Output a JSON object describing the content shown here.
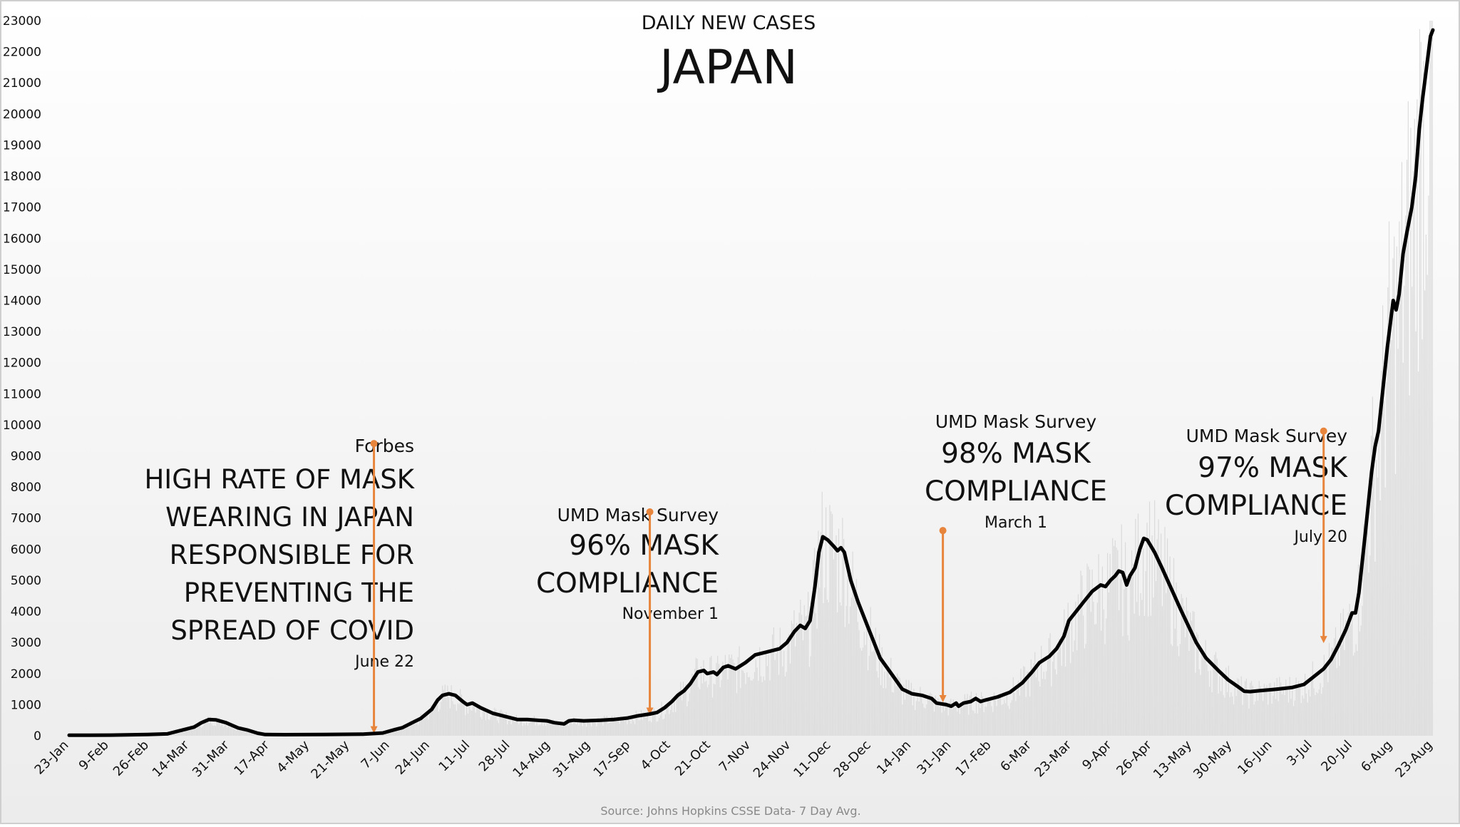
{
  "chart_data": {
    "type": "line",
    "title": "JAPAN",
    "subtitle": "DAILY NEW CASES",
    "source": "Source: Johns Hopkins CSSE Data- 7 Day Avg.",
    "xlabel": "",
    "ylabel": "",
    "ylim": [
      0,
      23000
    ],
    "y_ticks": [
      0,
      1000,
      2000,
      3000,
      4000,
      5000,
      6000,
      7000,
      8000,
      9000,
      10000,
      11000,
      12000,
      13000,
      14000,
      15000,
      16000,
      17000,
      18000,
      19000,
      20000,
      21000,
      22000,
      23000
    ],
    "x_tick_labels": [
      "23-Jan",
      "9-Feb",
      "26-Feb",
      "14-Mar",
      "31-Mar",
      "17-Apr",
      "4-May",
      "21-May",
      "7-Jun",
      "24-Jun",
      "11-Jul",
      "28-Jul",
      "14-Aug",
      "31-Aug",
      "17-Sep",
      "4-Oct",
      "21-Oct",
      "7-Nov",
      "24-Nov",
      "11-Dec",
      "28-Dec",
      "14-Jan",
      "31-Jan",
      "17-Feb",
      "6-Mar",
      "23-Mar",
      "9-Apr",
      "26-Apr",
      "13-May",
      "30-May",
      "16-Jun",
      "3-Jul",
      "20-Jul",
      "6-Aug",
      "23-Aug"
    ],
    "grid": false,
    "legend": "none",
    "line_color": "#000000",
    "daily_bar_color": "#d0d0d0",
    "series": [
      {
        "name": "",
        "points": [
          [
            0,
            15
          ],
          [
            85,
            20
          ],
          [
            160,
            40
          ],
          [
            200,
            60
          ],
          [
            230,
            180
          ],
          [
            255,
            280
          ],
          [
            270,
            420
          ],
          [
            285,
            520
          ],
          [
            300,
            510
          ],
          [
            320,
            420
          ],
          [
            345,
            250
          ],
          [
            365,
            180
          ],
          [
            385,
            80
          ],
          [
            400,
            40
          ],
          [
            440,
            35
          ],
          [
            520,
            40
          ],
          [
            600,
            50
          ],
          [
            640,
            90
          ],
          [
            665,
            200
          ],
          [
            680,
            260
          ],
          [
            700,
            420
          ],
          [
            718,
            560
          ],
          [
            740,
            850
          ],
          [
            752,
            1150
          ],
          [
            762,
            1300
          ],
          [
            775,
            1350
          ],
          [
            788,
            1300
          ],
          [
            805,
            1080
          ],
          [
            812,
            1000
          ],
          [
            823,
            1050
          ],
          [
            840,
            900
          ],
          [
            865,
            720
          ],
          [
            895,
            600
          ],
          [
            915,
            520
          ],
          [
            935,
            520
          ],
          [
            955,
            500
          ],
          [
            975,
            480
          ],
          [
            990,
            420
          ],
          [
            1010,
            380
          ],
          [
            1020,
            480
          ],
          [
            1030,
            500
          ],
          [
            1050,
            480
          ],
          [
            1085,
            500
          ],
          [
            1110,
            520
          ],
          [
            1140,
            570
          ],
          [
            1160,
            640
          ],
          [
            1185,
            700
          ],
          [
            1200,
            750
          ],
          [
            1215,
            900
          ],
          [
            1230,
            1100
          ],
          [
            1242,
            1300
          ],
          [
            1255,
            1450
          ],
          [
            1268,
            1680
          ],
          [
            1283,
            2050
          ],
          [
            1295,
            2100
          ],
          [
            1302,
            2000
          ],
          [
            1315,
            2050
          ],
          [
            1322,
            1970
          ],
          [
            1335,
            2200
          ],
          [
            1345,
            2250
          ],
          [
            1360,
            2150
          ],
          [
            1380,
            2350
          ],
          [
            1400,
            2600
          ],
          [
            1425,
            2700
          ],
          [
            1450,
            2800
          ],
          [
            1465,
            3000
          ],
          [
            1480,
            3350
          ],
          [
            1492,
            3550
          ],
          [
            1502,
            3450
          ],
          [
            1512,
            3700
          ],
          [
            1522,
            4800
          ],
          [
            1530,
            5900
          ],
          [
            1538,
            6400
          ],
          [
            1548,
            6300
          ],
          [
            1560,
            6100
          ],
          [
            1568,
            5950
          ],
          [
            1575,
            6050
          ],
          [
            1582,
            5900
          ],
          [
            1595,
            5000
          ],
          [
            1610,
            4300
          ],
          [
            1630,
            3500
          ],
          [
            1655,
            2500
          ],
          [
            1680,
            1950
          ],
          [
            1700,
            1500
          ],
          [
            1720,
            1350
          ],
          [
            1740,
            1300
          ],
          [
            1760,
            1200
          ],
          [
            1770,
            1050
          ],
          [
            1790,
            1000
          ],
          [
            1800,
            950
          ],
          [
            1810,
            1050
          ],
          [
            1815,
            950
          ],
          [
            1825,
            1050
          ],
          [
            1840,
            1100
          ],
          [
            1850,
            1200
          ],
          [
            1860,
            1100
          ],
          [
            1870,
            1150
          ],
          [
            1895,
            1250
          ],
          [
            1920,
            1400
          ],
          [
            1945,
            1700
          ],
          [
            1965,
            2050
          ],
          [
            1980,
            2350
          ],
          [
            2000,
            2550
          ],
          [
            2015,
            2800
          ],
          [
            2030,
            3200
          ],
          [
            2040,
            3700
          ],
          [
            2055,
            4000
          ],
          [
            2070,
            4300
          ],
          [
            2088,
            4650
          ],
          [
            2105,
            4850
          ],
          [
            2115,
            4800
          ],
          [
            2125,
            5000
          ],
          [
            2135,
            5150
          ],
          [
            2142,
            5300
          ],
          [
            2150,
            5250
          ],
          [
            2158,
            4850
          ],
          [
            2165,
            5150
          ],
          [
            2175,
            5400
          ],
          [
            2185,
            6000
          ],
          [
            2193,
            6350
          ],
          [
            2200,
            6300
          ],
          [
            2215,
            5900
          ],
          [
            2230,
            5400
          ],
          [
            2250,
            4700
          ],
          [
            2270,
            4000
          ],
          [
            2285,
            3500
          ],
          [
            2300,
            3000
          ],
          [
            2320,
            2500
          ],
          [
            2345,
            2100
          ],
          [
            2365,
            1800
          ],
          [
            2385,
            1580
          ],
          [
            2398,
            1430
          ],
          [
            2410,
            1420
          ],
          [
            2430,
            1450
          ],
          [
            2465,
            1500
          ],
          [
            2495,
            1550
          ],
          [
            2520,
            1650
          ],
          [
            2540,
            1900
          ],
          [
            2560,
            2150
          ],
          [
            2575,
            2450
          ],
          [
            2590,
            2900
          ],
          [
            2605,
            3400
          ],
          [
            2618,
            3950
          ],
          [
            2625,
            3950
          ],
          [
            2632,
            4600
          ],
          [
            2645,
            6500
          ],
          [
            2658,
            8500
          ],
          [
            2665,
            9300
          ],
          [
            2672,
            9800
          ],
          [
            2680,
            11000
          ],
          [
            2690,
            12500
          ],
          [
            2702,
            14000
          ],
          [
            2708,
            13700
          ],
          [
            2714,
            14200
          ],
          [
            2722,
            15500
          ],
          [
            2730,
            16200
          ],
          [
            2740,
            17000
          ],
          [
            2748,
            18000
          ],
          [
            2755,
            19500
          ],
          [
            2762,
            20500
          ],
          [
            2770,
            21500
          ],
          [
            2778,
            22500
          ],
          [
            2783,
            22700
          ]
        ]
      }
    ],
    "annotations": [
      {
        "source": "Forbes",
        "lines": [
          "HIGH RATE OF MASK",
          "WEARING IN JAPAN",
          "RESPONSIBLE FOR",
          "PREVENTING THE",
          "SPREAD OF COVID"
        ],
        "date": "June 22",
        "marker_day": 622,
        "marker_top": 9400,
        "marker_bottom": 100
      },
      {
        "source": "UMD Mask Survey",
        "lines": [
          "96% MASK",
          "COMPLIANCE"
        ],
        "date": "November 1",
        "marker_day": 1185,
        "marker_top": 7200,
        "marker_bottom": 700
      },
      {
        "source": "UMD Mask Survey",
        "lines": [
          "98% MASK",
          "COMPLIANCE"
        ],
        "date": "March 1",
        "marker_day": 1783,
        "marker_top": 6600,
        "marker_bottom": 1100
      },
      {
        "source": "UMD Mask Survey",
        "lines": [
          "97% MASK",
          "COMPLIANCE"
        ],
        "date": "July 20",
        "marker_day": 2560,
        "marker_top": 9800,
        "marker_bottom": 3000
      }
    ],
    "marker_color": "#e8853d"
  }
}
